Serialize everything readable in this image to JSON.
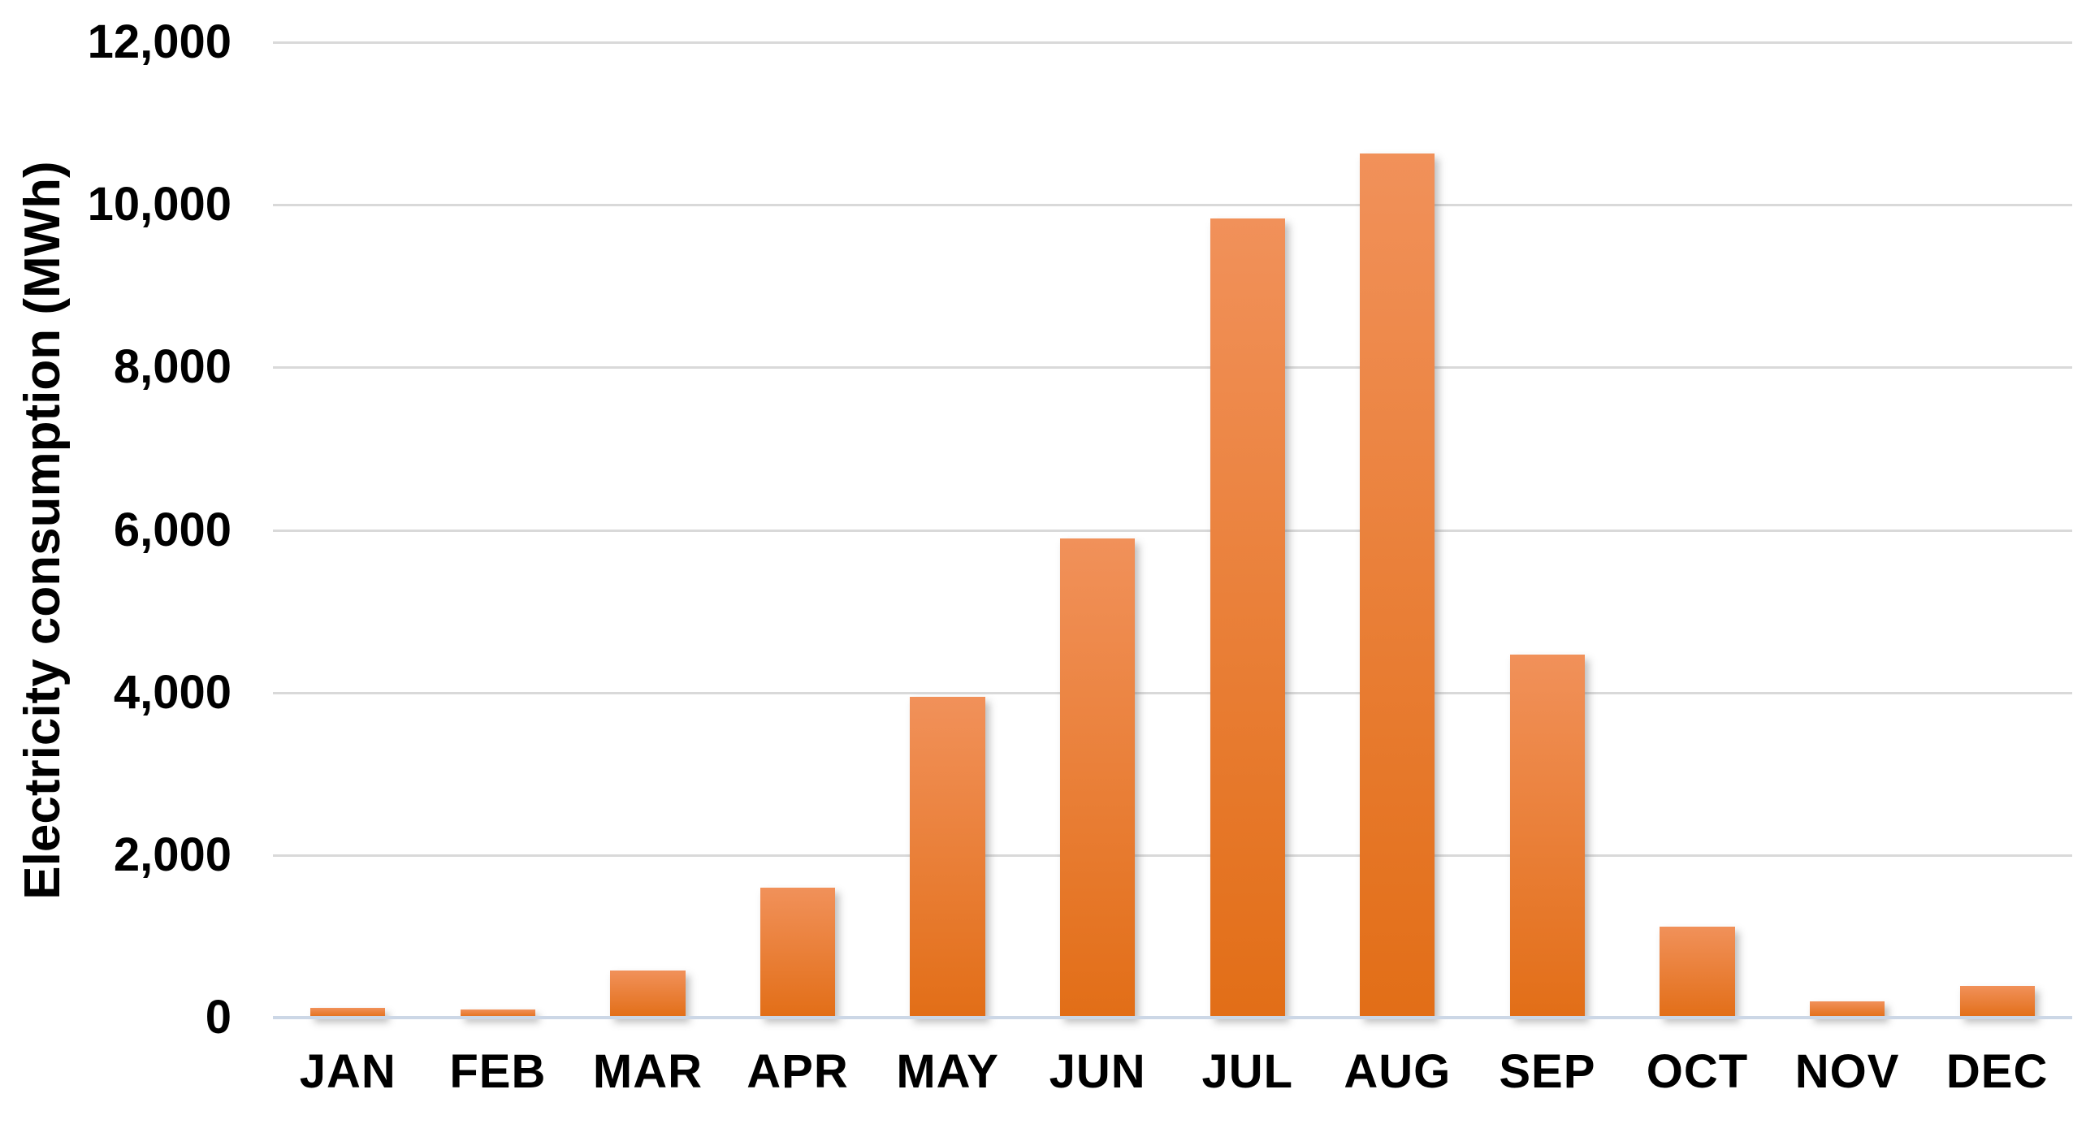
{
  "chart_data": {
    "type": "bar",
    "title": "",
    "xlabel": "",
    "ylabel": "Electricity consumption (MWh)",
    "categories": [
      "JAN",
      "FEB",
      "MAR",
      "APR",
      "MAY",
      "JUN",
      "JUL",
      "AUG",
      "SEP",
      "OCT",
      "NOV",
      "DEC"
    ],
    "values": [
      125,
      105,
      580,
      1600,
      3950,
      5900,
      9830,
      10630,
      4470,
      1120,
      200,
      390
    ],
    "ylim": [
      0,
      12000
    ],
    "ytick_interval": 2000,
    "yticks": [
      {
        "value": 0,
        "label": "0"
      },
      {
        "value": 2000,
        "label": "2,000"
      },
      {
        "value": 4000,
        "label": "4,000"
      },
      {
        "value": 6000,
        "label": "6,000"
      },
      {
        "value": 8000,
        "label": "8,000"
      },
      {
        "value": 10000,
        "label": "10,000"
      },
      {
        "value": 12000,
        "label": "12,000"
      }
    ],
    "grid": true,
    "legend": "none",
    "colors": {
      "bar_gradient_top": "#f1915a",
      "bar_gradient_bottom": "#e26e17",
      "gridline": "#d9d9d9",
      "axis_line": "#ccd7e6",
      "text": "#000000",
      "background": "#ffffff"
    }
  }
}
